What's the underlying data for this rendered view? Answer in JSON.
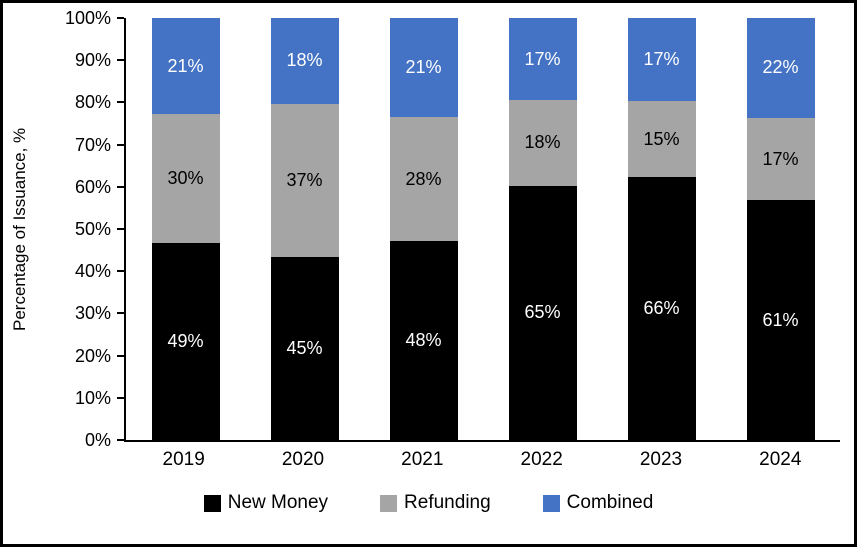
{
  "chart_data": {
    "type": "bar",
    "subtype": "stacked-percentage",
    "ylabel": "Percentage of Issuance, %",
    "xlabel": "",
    "ylim": [
      0,
      100
    ],
    "grid": false,
    "legend_position": "bottom",
    "value_suffix": "%",
    "yticks": [
      {
        "value": 0,
        "label": "0%"
      },
      {
        "value": 10,
        "label": "10%"
      },
      {
        "value": 20,
        "label": "20%"
      },
      {
        "value": 30,
        "label": "30%"
      },
      {
        "value": 40,
        "label": "40%"
      },
      {
        "value": 50,
        "label": "50%"
      },
      {
        "value": 60,
        "label": "60%"
      },
      {
        "value": 70,
        "label": "70%"
      },
      {
        "value": 80,
        "label": "80%"
      },
      {
        "value": 90,
        "label": "90%"
      },
      {
        "value": 100,
        "label": "100%"
      }
    ],
    "categories": [
      "2019",
      "2020",
      "2021",
      "2022",
      "2023",
      "2024"
    ],
    "series": [
      {
        "name": "New Money",
        "color": "#000000",
        "label_color": "#ffffff",
        "values": [
          49,
          45,
          48,
          65,
          66,
          61
        ]
      },
      {
        "name": "Refunding",
        "color": "#a5a5a5",
        "label_color": "#000000",
        "values": [
          30,
          37,
          28,
          18,
          15,
          17
        ]
      },
      {
        "name": "Combined",
        "color": "#4472c4",
        "label_color": "#ffffff",
        "values": [
          21,
          18,
          21,
          17,
          17,
          22
        ]
      }
    ]
  }
}
